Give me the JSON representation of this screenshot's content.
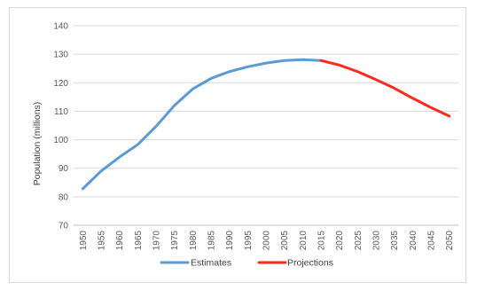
{
  "chart_data": {
    "type": "line",
    "title": "",
    "xlabel": "",
    "ylabel": "Population (millions)",
    "ylim": [
      70,
      140
    ],
    "yticks": [
      70,
      80,
      90,
      100,
      110,
      120,
      130,
      140
    ],
    "grid": true,
    "legend_position": "bottom",
    "categories": [
      "1950",
      "1955",
      "1960",
      "1965",
      "1970",
      "1975",
      "1980",
      "1985",
      "1990",
      "1995",
      "2000",
      "2005",
      "2010",
      "2015",
      "2020",
      "2025",
      "2030",
      "2035",
      "2040",
      "2045",
      "2050"
    ],
    "series": [
      {
        "name": "Estimates",
        "color": "#5b9bd5",
        "x": [
          "1950",
          "1955",
          "1960",
          "1965",
          "1970",
          "1975",
          "1980",
          "1985",
          "1990",
          "1995",
          "2000",
          "2005",
          "2010",
          "2015"
        ],
        "values": [
          82.8,
          89.0,
          93.9,
          98.3,
          104.7,
          112.0,
          117.8,
          121.5,
          123.9,
          125.6,
          126.9,
          127.8,
          128.1,
          127.8
        ]
      },
      {
        "name": "Projections",
        "color": "#ff2a1a",
        "x": [
          "2015",
          "2020",
          "2025",
          "2030",
          "2035",
          "2040",
          "2045",
          "2050"
        ],
        "values": [
          127.8,
          126.2,
          123.9,
          121.1,
          118.1,
          114.6,
          111.3,
          108.3
        ]
      }
    ]
  }
}
